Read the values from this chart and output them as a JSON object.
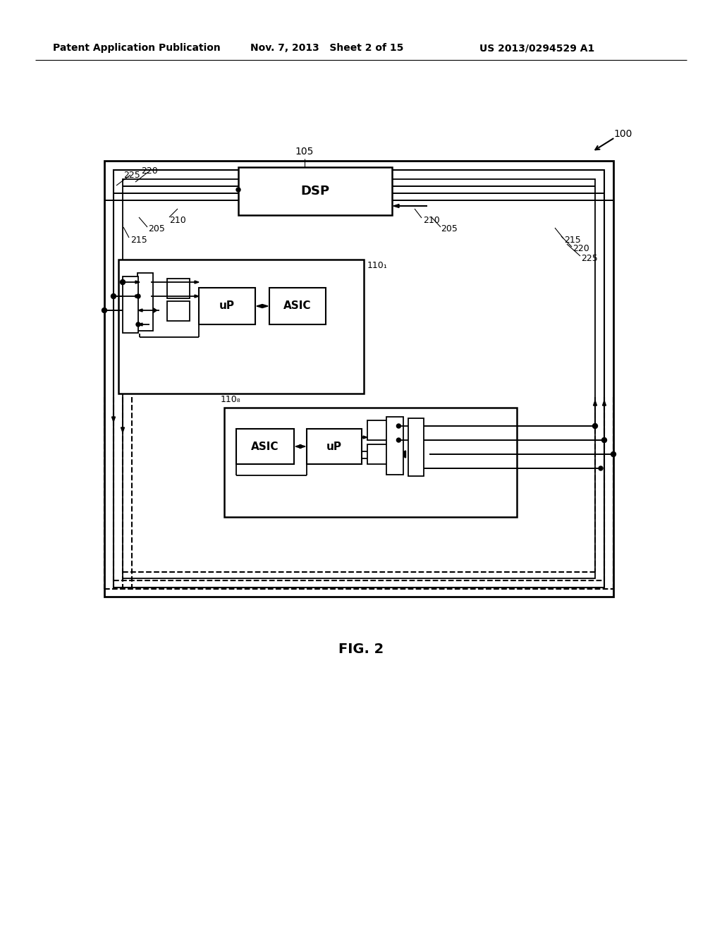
{
  "bg_color": "#ffffff",
  "lc": "#000000",
  "header_left": "Patent Application Publication",
  "header_mid": "Nov. 7, 2013   Sheet 2 of 15",
  "header_right": "US 2013/0294529 A1",
  "fig_label": "FIG. 2",
  "ref_100": "100",
  "ref_105": "105",
  "ref_110_1": "110₁",
  "ref_110_8": "110₈",
  "ref_205": "205",
  "ref_210": "210",
  "ref_215": "215",
  "ref_220": "220",
  "ref_225": "225"
}
